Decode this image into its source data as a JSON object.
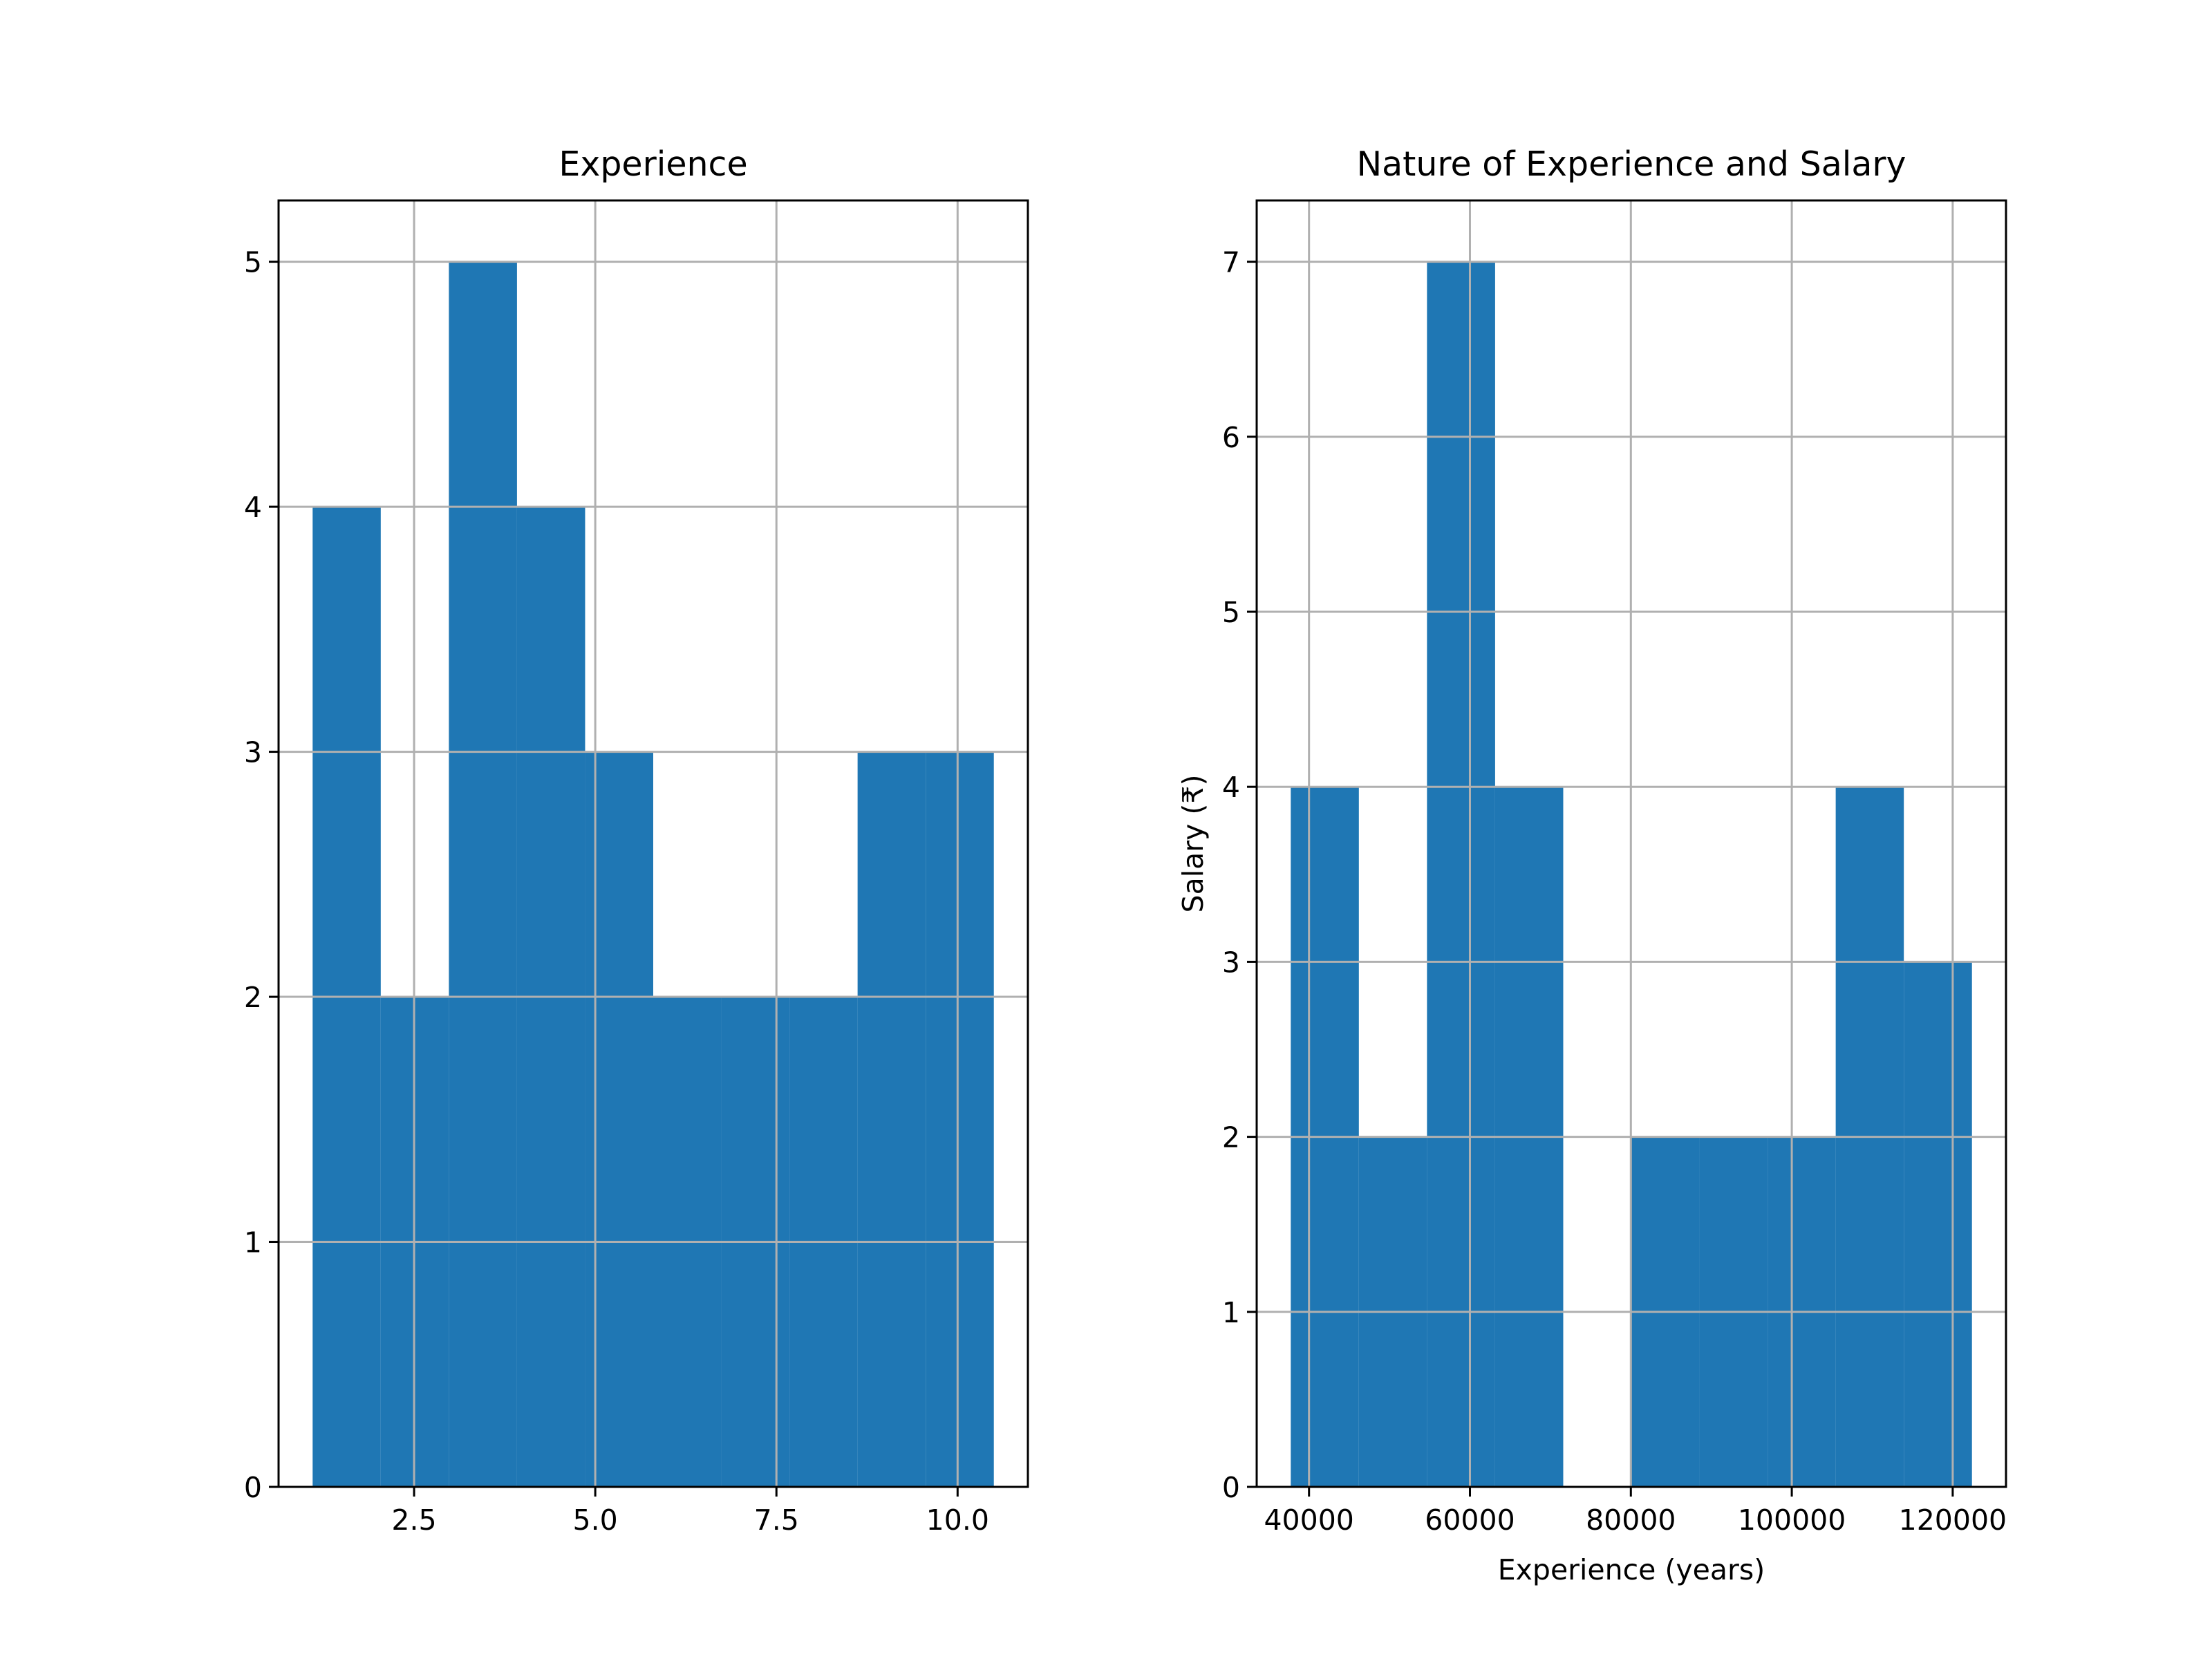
{
  "chart_data": [
    {
      "type": "histogram",
      "title": "Experience",
      "color": "#1f77b4",
      "bins": [
        1.1,
        2.04,
        2.98,
        3.92,
        4.86,
        5.8,
        6.74,
        7.68,
        8.62,
        9.56,
        10.5
      ],
      "values": [
        4,
        2,
        5,
        4,
        3,
        2,
        2,
        2,
        3,
        3
      ],
      "xlim": [
        0.63,
        10.97
      ],
      "ylim": [
        0,
        5.25
      ],
      "xticks": [
        2.5,
        {
          "value": 5,
          "label": "5.0"
        },
        7.5,
        {
          "value": 10,
          "label": "10.0"
        }
      ],
      "yticks": [
        0,
        1,
        2,
        3,
        4,
        5
      ],
      "grid": true
    },
    {
      "type": "histogram",
      "title": "Nature of Experience and Salary",
      "xlabel": "Experience (years)",
      "ylabel": "Salary (₹)",
      "color": "#1f77b4",
      "bins": [
        37731,
        46197,
        54663,
        63129,
        71595,
        80061,
        88527,
        96993,
        105459,
        113925,
        122391
      ],
      "values": [
        4,
        2,
        7,
        4,
        0,
        2,
        2,
        2,
        4,
        3
      ],
      "xlim": [
        33498,
        126624
      ],
      "ylim": [
        0,
        7.35
      ],
      "xticks": [
        40000,
        60000,
        80000,
        100000,
        120000
      ],
      "yticks": [
        0,
        1,
        2,
        3,
        4,
        5,
        6,
        7
      ],
      "grid": true
    }
  ]
}
